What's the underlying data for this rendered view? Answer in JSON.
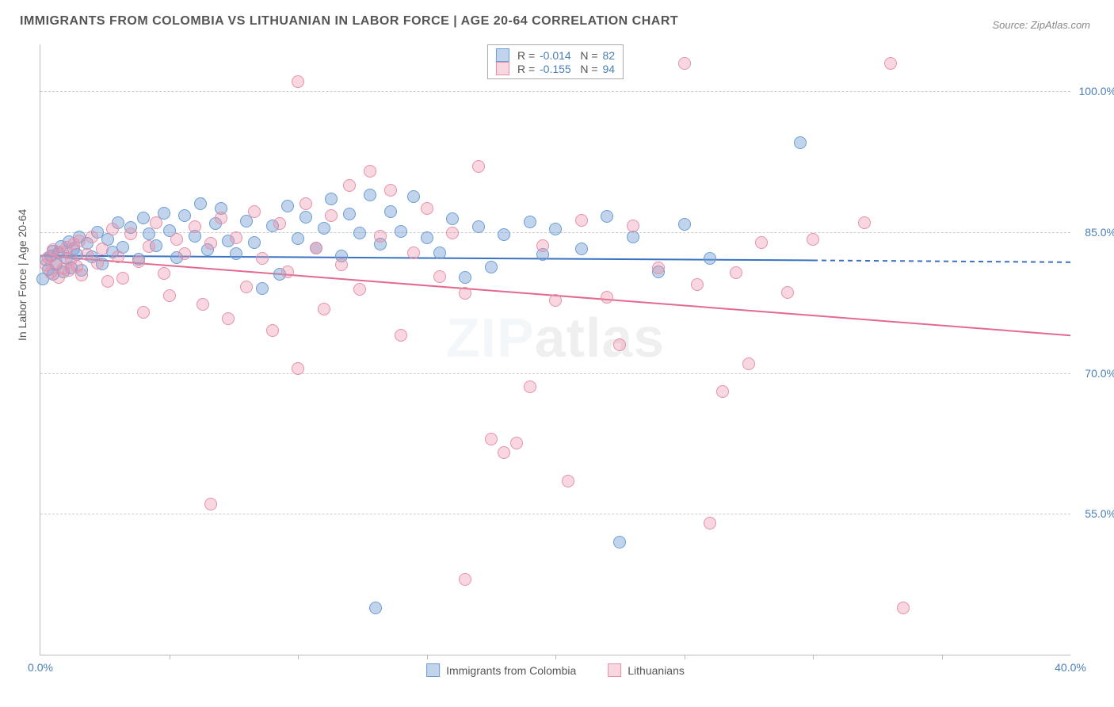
{
  "title": "IMMIGRANTS FROM COLOMBIA VS LITHUANIAN IN LABOR FORCE | AGE 20-64 CORRELATION CHART",
  "source": "Source: ZipAtlas.com",
  "ylabel": "In Labor Force | Age 20-64",
  "watermark": "ZIPatlas",
  "chart": {
    "type": "scatter",
    "xlim": [
      0,
      40
    ],
    "ylim": [
      40,
      105
    ],
    "xticks": [
      {
        "v": 0,
        "label": "0.0%"
      },
      {
        "v": 40,
        "label": "40.0%"
      }
    ],
    "xtick_marks": [
      5,
      10,
      15,
      20,
      25,
      30,
      35
    ],
    "yticks": [
      {
        "v": 55,
        "label": "55.0%"
      },
      {
        "v": 70,
        "label": "70.0%"
      },
      {
        "v": 85,
        "label": "85.0%"
      },
      {
        "v": 100,
        "label": "100.0%"
      }
    ],
    "series": [
      {
        "name": "Immigrants from Colombia",
        "color_fill": "rgba(120,160,210,0.45)",
        "color_stroke": "#6a9ed4",
        "line_color": "#3a72c2",
        "r": "-0.014",
        "n": "82",
        "trend": {
          "x1": 0,
          "y1": 82.5,
          "x2": 30,
          "y2": 82
        },
        "trend_dashed": {
          "x1": 30,
          "y1": 82,
          "x2": 40,
          "y2": 81.8
        },
        "points": [
          [
            0.2,
            82
          ],
          [
            0.3,
            81
          ],
          [
            0.4,
            82.5
          ],
          [
            0.5,
            80.5
          ],
          [
            0.5,
            83
          ],
          [
            0.6,
            81.5
          ],
          [
            0.7,
            82.8
          ],
          [
            0.8,
            83.5
          ],
          [
            0.9,
            80.8
          ],
          [
            1.0,
            82.2
          ],
          [
            1.1,
            84
          ],
          [
            1.2,
            81.2
          ],
          [
            1.3,
            83.2
          ],
          [
            1.4,
            82.6
          ],
          [
            1.5,
            84.5
          ],
          [
            1.6,
            80.9
          ],
          [
            1.8,
            83.8
          ],
          [
            2.0,
            82.4
          ],
          [
            2.2,
            85
          ],
          [
            2.4,
            81.6
          ],
          [
            2.6,
            84.2
          ],
          [
            2.8,
            82.9
          ],
          [
            3.0,
            86
          ],
          [
            3.2,
            83.4
          ],
          [
            3.5,
            85.5
          ],
          [
            3.8,
            82.1
          ],
          [
            4.0,
            86.5
          ],
          [
            4.2,
            84.8
          ],
          [
            4.5,
            83.6
          ],
          [
            4.8,
            87
          ],
          [
            5.0,
            85.2
          ],
          [
            5.3,
            82.3
          ],
          [
            5.6,
            86.8
          ],
          [
            6.0,
            84.6
          ],
          [
            6.2,
            88
          ],
          [
            6.5,
            83.1
          ],
          [
            6.8,
            85.9
          ],
          [
            7.0,
            87.5
          ],
          [
            7.3,
            84.1
          ],
          [
            7.6,
            82.7
          ],
          [
            8.0,
            86.2
          ],
          [
            8.3,
            83.9
          ],
          [
            8.6,
            79
          ],
          [
            9.0,
            85.7
          ],
          [
            9.3,
            80.5
          ],
          [
            9.6,
            87.8
          ],
          [
            10.0,
            84.3
          ],
          [
            10.3,
            86.6
          ],
          [
            10.7,
            83.3
          ],
          [
            11.0,
            85.4
          ],
          [
            11.3,
            88.5
          ],
          [
            11.7,
            82.5
          ],
          [
            12.0,
            86.9
          ],
          [
            12.4,
            84.9
          ],
          [
            12.8,
            89
          ],
          [
            13.2,
            83.7
          ],
          [
            13.6,
            87.2
          ],
          [
            14.0,
            85.1
          ],
          [
            14.5,
            88.8
          ],
          [
            15.0,
            84.4
          ],
          [
            15.5,
            82.8
          ],
          [
            16.0,
            86.4
          ],
          [
            16.5,
            80.2
          ],
          [
            17.0,
            85.6
          ],
          [
            17.5,
            81.3
          ],
          [
            18.0,
            84.7
          ],
          [
            19.0,
            86.1
          ],
          [
            19.5,
            82.6
          ],
          [
            20.0,
            85.3
          ],
          [
            21.0,
            83.2
          ],
          [
            22.0,
            86.7
          ],
          [
            23.0,
            84.5
          ],
          [
            24.0,
            80.8
          ],
          [
            25.0,
            85.8
          ],
          [
            26.0,
            82.2
          ],
          [
            13.0,
            45
          ],
          [
            22.5,
            52
          ],
          [
            29.5,
            94.5
          ],
          [
            0.1,
            80
          ]
        ]
      },
      {
        "name": "Lithuanians",
        "color_fill": "rgba(235,140,165,0.35)",
        "color_stroke": "#e591aa",
        "line_color": "#e26a8e",
        "r": "-0.155",
        "n": "94",
        "trend": {
          "x1": 0,
          "y1": 82.5,
          "x2": 40,
          "y2": 74
        },
        "points": [
          [
            0.2,
            81.5
          ],
          [
            0.3,
            82.3
          ],
          [
            0.4,
            80.7
          ],
          [
            0.5,
            83.1
          ],
          [
            0.6,
            81.8
          ],
          [
            0.7,
            80.2
          ],
          [
            0.8,
            82.9
          ],
          [
            0.9,
            81.1
          ],
          [
            1.0,
            83.4
          ],
          [
            1.1,
            80.9
          ],
          [
            1.2,
            82.1
          ],
          [
            1.3,
            83.7
          ],
          [
            1.4,
            81.4
          ],
          [
            1.5,
            84.1
          ],
          [
            1.6,
            80.4
          ],
          [
            1.8,
            82.6
          ],
          [
            2.0,
            84.5
          ],
          [
            2.2,
            81.7
          ],
          [
            2.4,
            83.2
          ],
          [
            2.6,
            79.8
          ],
          [
            2.8,
            85.3
          ],
          [
            3.0,
            82.4
          ],
          [
            3.2,
            80.1
          ],
          [
            3.5,
            84.8
          ],
          [
            3.8,
            81.9
          ],
          [
            4.0,
            76.5
          ],
          [
            4.2,
            83.5
          ],
          [
            4.5,
            86
          ],
          [
            4.8,
            80.6
          ],
          [
            5.0,
            78.2
          ],
          [
            5.3,
            84.2
          ],
          [
            5.6,
            82.7
          ],
          [
            6.0,
            85.6
          ],
          [
            6.3,
            77.3
          ],
          [
            6.6,
            83.8
          ],
          [
            6.6,
            56
          ],
          [
            7.0,
            86.5
          ],
          [
            7.3,
            75.8
          ],
          [
            7.6,
            84.4
          ],
          [
            8.0,
            79.2
          ],
          [
            8.3,
            87.2
          ],
          [
            8.6,
            82.2
          ],
          [
            9.0,
            74.5
          ],
          [
            9.3,
            85.9
          ],
          [
            9.6,
            80.8
          ],
          [
            10.0,
            70.5
          ],
          [
            10.3,
            88
          ],
          [
            10.7,
            83.3
          ],
          [
            11.0,
            76.8
          ],
          [
            11.3,
            86.8
          ],
          [
            11.7,
            81.5
          ],
          [
            12.0,
            90
          ],
          [
            12.4,
            78.9
          ],
          [
            12.8,
            91.5
          ],
          [
            13.2,
            84.6
          ],
          [
            13.6,
            89.5
          ],
          [
            14.0,
            74.0
          ],
          [
            14.5,
            82.8
          ],
          [
            15.0,
            87.5
          ],
          [
            15.5,
            80.3
          ],
          [
            10.0,
            101
          ],
          [
            16.0,
            84.9
          ],
          [
            16.5,
            78.5
          ],
          [
            17.0,
            92
          ],
          [
            17.5,
            63
          ],
          [
            18.0,
            61.5
          ],
          [
            18.5,
            62.5
          ],
          [
            19.0,
            68.5
          ],
          [
            19.5,
            83.6
          ],
          [
            20.0,
            77.7
          ],
          [
            20.5,
            58.5
          ],
          [
            21.0,
            86.3
          ],
          [
            22.0,
            78.1
          ],
          [
            22.5,
            73
          ],
          [
            23.0,
            85.7
          ],
          [
            24.0,
            81.2
          ],
          [
            25.0,
            103
          ],
          [
            25.5,
            79.4
          ],
          [
            26.0,
            54
          ],
          [
            26.5,
            68
          ],
          [
            27.0,
            80.7
          ],
          [
            27.5,
            71
          ],
          [
            28.0,
            83.9
          ],
          [
            29.0,
            78.6
          ],
          [
            30.0,
            84.2
          ],
          [
            32.0,
            86
          ],
          [
            33.0,
            103
          ],
          [
            33.5,
            45
          ],
          [
            16.5,
            48
          ]
        ]
      }
    ]
  }
}
